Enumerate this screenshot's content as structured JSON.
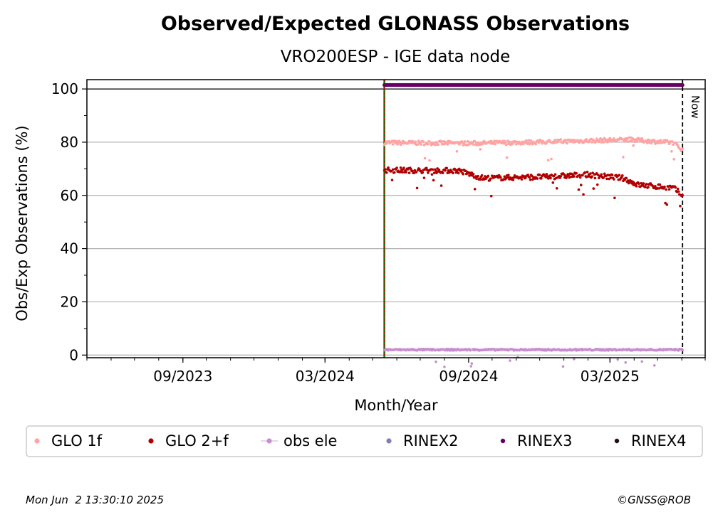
{
  "chart_data": {
    "type": "scatter",
    "title": "Observed/Expected GLONASS Observations",
    "subtitle": "VRO200ESP - IGE data node",
    "xlabel": "Month/Year",
    "ylabel": "Obs/Exp Observations (%)",
    "x_axis": {
      "type": "date",
      "range": [
        "2023-05-01",
        "2025-07-01"
      ],
      "ticks": [
        {
          "date": "2023-09-01",
          "label": "09/2023"
        },
        {
          "date": "2024-03-01",
          "label": "03/2024"
        },
        {
          "date": "2024-09-01",
          "label": "09/2024"
        },
        {
          "date": "2025-03-01",
          "label": "03/2025"
        }
      ]
    },
    "y_axis": {
      "range": [
        -1,
        103.5
      ],
      "ticks": [
        0,
        20,
        40,
        60,
        80,
        100
      ],
      "gridlines": [
        0,
        20,
        40,
        60,
        80
      ]
    },
    "grid": true,
    "legend_position": "bottom",
    "reference_lines": [
      {
        "date": "2024-05-16",
        "style": "green-solid-red-dashed"
      },
      {
        "date": "2025-06-02",
        "label": "Now",
        "style": "black-dashed"
      }
    ],
    "y_ref_line": 100,
    "series": [
      {
        "name": "GLO 1f",
        "color": "#ffa3a3",
        "start": "2024-05-16",
        "end": "2025-06-02",
        "base": [
          [
            0,
            79.8
          ],
          [
            0.3,
            79.6
          ],
          [
            0.5,
            80.0
          ],
          [
            0.7,
            80.6
          ],
          [
            0.82,
            81.0
          ],
          [
            0.9,
            80.3
          ],
          [
            0.97,
            79.8
          ],
          [
            1,
            77.0
          ]
        ],
        "noise": 0.8
      },
      {
        "name": "GLO 2+f",
        "color": "#b00000",
        "start": "2024-05-16",
        "end": "2025-06-02",
        "base": [
          [
            0,
            69.5
          ],
          [
            0.25,
            69.3
          ],
          [
            0.33,
            66.5
          ],
          [
            0.55,
            67.0
          ],
          [
            0.68,
            67.8
          ],
          [
            0.8,
            66.5
          ],
          [
            0.85,
            64.0
          ],
          [
            0.97,
            62.8
          ],
          [
            1,
            60.0
          ]
        ],
        "noise": 1.0
      },
      {
        "name": "obs ele",
        "color": "#c78dcf",
        "start": "2024-05-16",
        "end": "2025-06-02",
        "base": [
          [
            0,
            2.0
          ],
          [
            1,
            2.0
          ]
        ],
        "noise": 0.3
      },
      {
        "name": "RINEX2",
        "color": "#8a78b8",
        "start": "",
        "end": "",
        "base": [],
        "noise": 0
      },
      {
        "name": "RINEX3",
        "color": "#660066",
        "start": "2024-05-16",
        "end": "2025-06-02",
        "base": [
          [
            0,
            101.5
          ],
          [
            1,
            101.5
          ]
        ],
        "noise": 0
      },
      {
        "name": "RINEX4",
        "color": "#2a0a1e",
        "start": "",
        "end": "",
        "base": [],
        "noise": 0
      }
    ]
  },
  "footer": {
    "timestamp": "Mon Jun  2 13:30:10 2025",
    "copyright": "©GNSS@ROB"
  }
}
